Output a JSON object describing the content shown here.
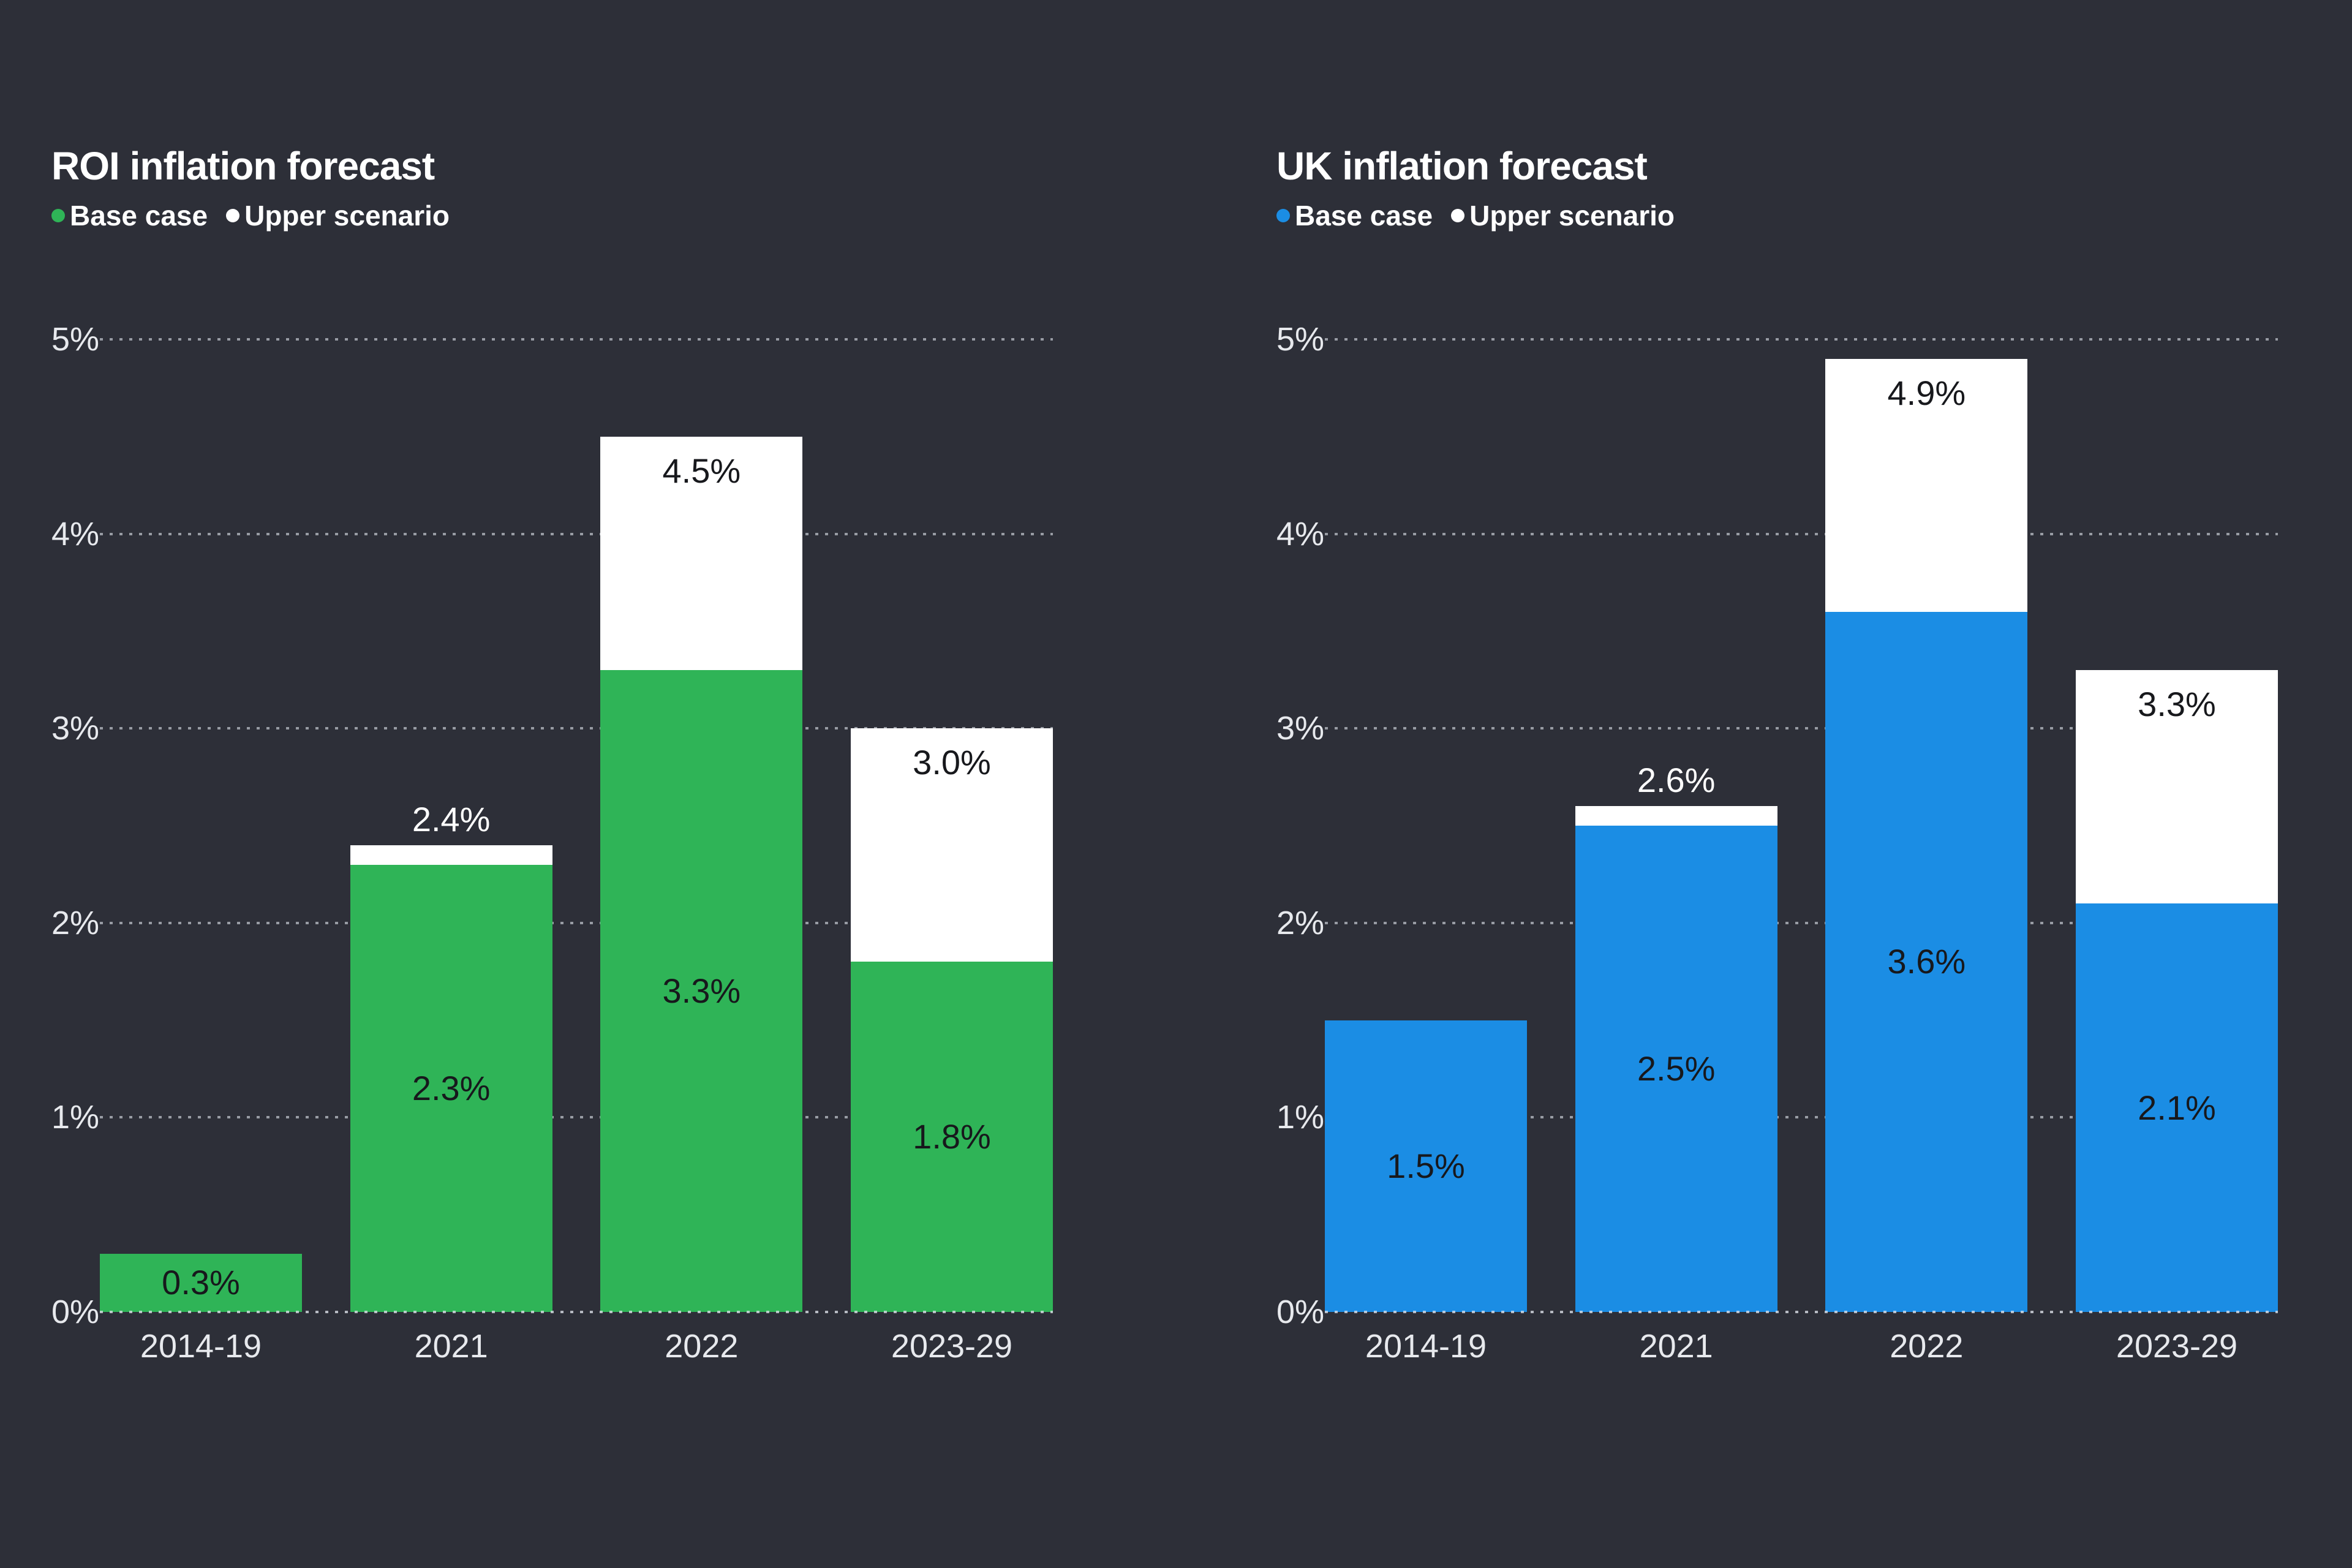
{
  "page": {
    "background": "#2d2f38"
  },
  "chart_data": [
    {
      "type": "bar",
      "stacked": true,
      "title": "ROI inflation forecast",
      "categories": [
        "2014-19",
        "2021",
        "2022",
        "2023-29"
      ],
      "series": [
        {
          "name": "Base case",
          "color": "#2fb457",
          "values": [
            0.3,
            2.3,
            3.3,
            1.8
          ],
          "labels": [
            "0.3%",
            "2.3%",
            "3.3%",
            "1.8%"
          ]
        },
        {
          "name": "Upper scenario",
          "color": "#ffffff",
          "values": [
            null,
            2.4,
            4.5,
            3.0
          ],
          "labels": [
            null,
            "2.4%",
            "4.5%",
            "3.0%"
          ],
          "label_position": [
            null,
            "above",
            "inside",
            "inside"
          ]
        }
      ],
      "ylim": [
        0,
        5
      ],
      "y_ticks": [
        0,
        1,
        2,
        3,
        4,
        5
      ],
      "y_tick_labels": [
        "0%",
        "1%",
        "2%",
        "3%",
        "4%",
        "5%"
      ],
      "grid": "dotted-horizontal",
      "legend_position": "top-left",
      "xlabel": "",
      "ylabel": ""
    },
    {
      "type": "bar",
      "stacked": true,
      "title": "UK inflation forecast",
      "categories": [
        "2014-19",
        "2021",
        "2022",
        "2023-29"
      ],
      "series": [
        {
          "name": "Base case",
          "color": "#1b8de4",
          "values": [
            1.5,
            2.5,
            3.6,
            2.1
          ],
          "labels": [
            "1.5%",
            "2.5%",
            "3.6%",
            "2.1%"
          ]
        },
        {
          "name": "Upper scenario",
          "color": "#ffffff",
          "values": [
            null,
            2.6,
            4.9,
            3.3
          ],
          "labels": [
            null,
            "2.6%",
            "4.9%",
            "3.3%"
          ],
          "label_position": [
            null,
            "above",
            "inside",
            "inside"
          ]
        }
      ],
      "ylim": [
        0,
        5
      ],
      "y_ticks": [
        0,
        1,
        2,
        3,
        4,
        5
      ],
      "y_tick_labels": [
        "0%",
        "1%",
        "2%",
        "3%",
        "4%",
        "5%"
      ],
      "grid": "dotted-horizontal",
      "legend_position": "top-left",
      "xlabel": "",
      "ylabel": ""
    }
  ]
}
